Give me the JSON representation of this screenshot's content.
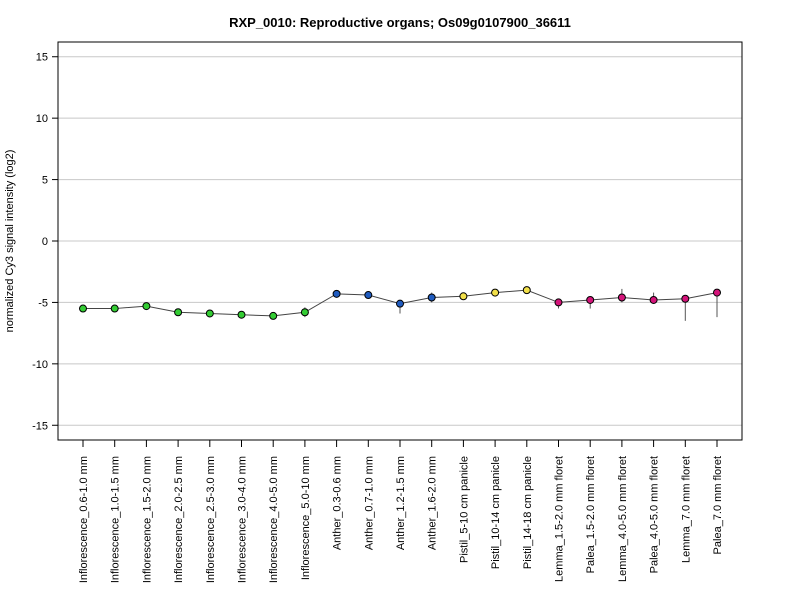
{
  "chart_data": {
    "type": "line",
    "title": "RXP_0010: Reproductive organs; Os09g0107900_36611",
    "xlabel": "",
    "ylabel": "normalized Cy3 signal intensity (log2)",
    "ylim": [
      -16.2,
      16.2
    ],
    "yticks": [
      15,
      10,
      5,
      0,
      -5,
      -10,
      -15
    ],
    "ytick_labels": [
      "15",
      "10",
      "5",
      "0",
      "-5",
      "-10",
      "-15"
    ],
    "grid": "horizontal",
    "categories": [
      "Inflorescence_0.6-1.0 mm",
      "Inflorescence_1.0-1.5 mm",
      "Inflorescence_1.5-2.0 mm",
      "Inflorescence_2.0-2.5 mm",
      "Inflorescence_2.5-3.0 mm",
      "Inflorescence_3.0-4.0 mm",
      "Inflorescence_4.0-5.0 mm",
      "Inflorescence_5.0-10 mm",
      "Anther_0.3-0.6 mm",
      "Anther_0.7-1.0 mm",
      "Anther_1.2-1.5 mm",
      "Anther_1.6-2.0 mm",
      "Pistil_5-10 cm panicle",
      "Pistil_10-14 cm panicle",
      "Pistil_14-18 cm panicle",
      "Lemma_1.5-2.0 mm floret",
      "Palea_1.5-2.0 mm floret",
      "Lemma_4.0-5.0 mm floret",
      "Palea_4.0-5.0 mm floret",
      "Lemma_7.0 mm floret",
      "Palea_7.0 mm floret"
    ],
    "values": [
      -5.5,
      -5.5,
      -5.3,
      -5.8,
      -5.9,
      -6.0,
      -6.1,
      -5.8,
      -4.3,
      -4.4,
      -5.1,
      -4.6,
      -4.5,
      -4.2,
      -4.0,
      -5.0,
      -4.8,
      -4.6,
      -4.8,
      -4.7,
      -4.2
    ],
    "error_low": [
      -5.6,
      -5.6,
      -5.4,
      -5.9,
      -6.0,
      -6.1,
      -6.2,
      -6.2,
      -4.4,
      -4.5,
      -5.9,
      -5.0,
      -4.6,
      -4.3,
      -4.2,
      -5.5,
      -5.5,
      -5.0,
      -5.0,
      -6.5,
      -6.2
    ],
    "error_high": [
      -5.4,
      -5.4,
      -5.1,
      -5.7,
      -5.8,
      -5.9,
      -6.0,
      -5.4,
      -4.2,
      -4.3,
      -5.0,
      -4.2,
      -4.3,
      -4.1,
      -3.7,
      -4.8,
      -4.6,
      -3.9,
      -4.2,
      -4.5,
      -4.1
    ],
    "point_colors": [
      "#33cc33",
      "#33cc33",
      "#33cc33",
      "#33cc33",
      "#33cc33",
      "#33cc33",
      "#33cc33",
      "#33cc33",
      "#1f5bbf",
      "#1f5bbf",
      "#1f5bbf",
      "#1f5bbf",
      "#f2e04a",
      "#f2e04a",
      "#f2e04a",
      "#d4147a",
      "#d4147a",
      "#d4147a",
      "#d4147a",
      "#d4147a",
      "#d4147a"
    ]
  }
}
